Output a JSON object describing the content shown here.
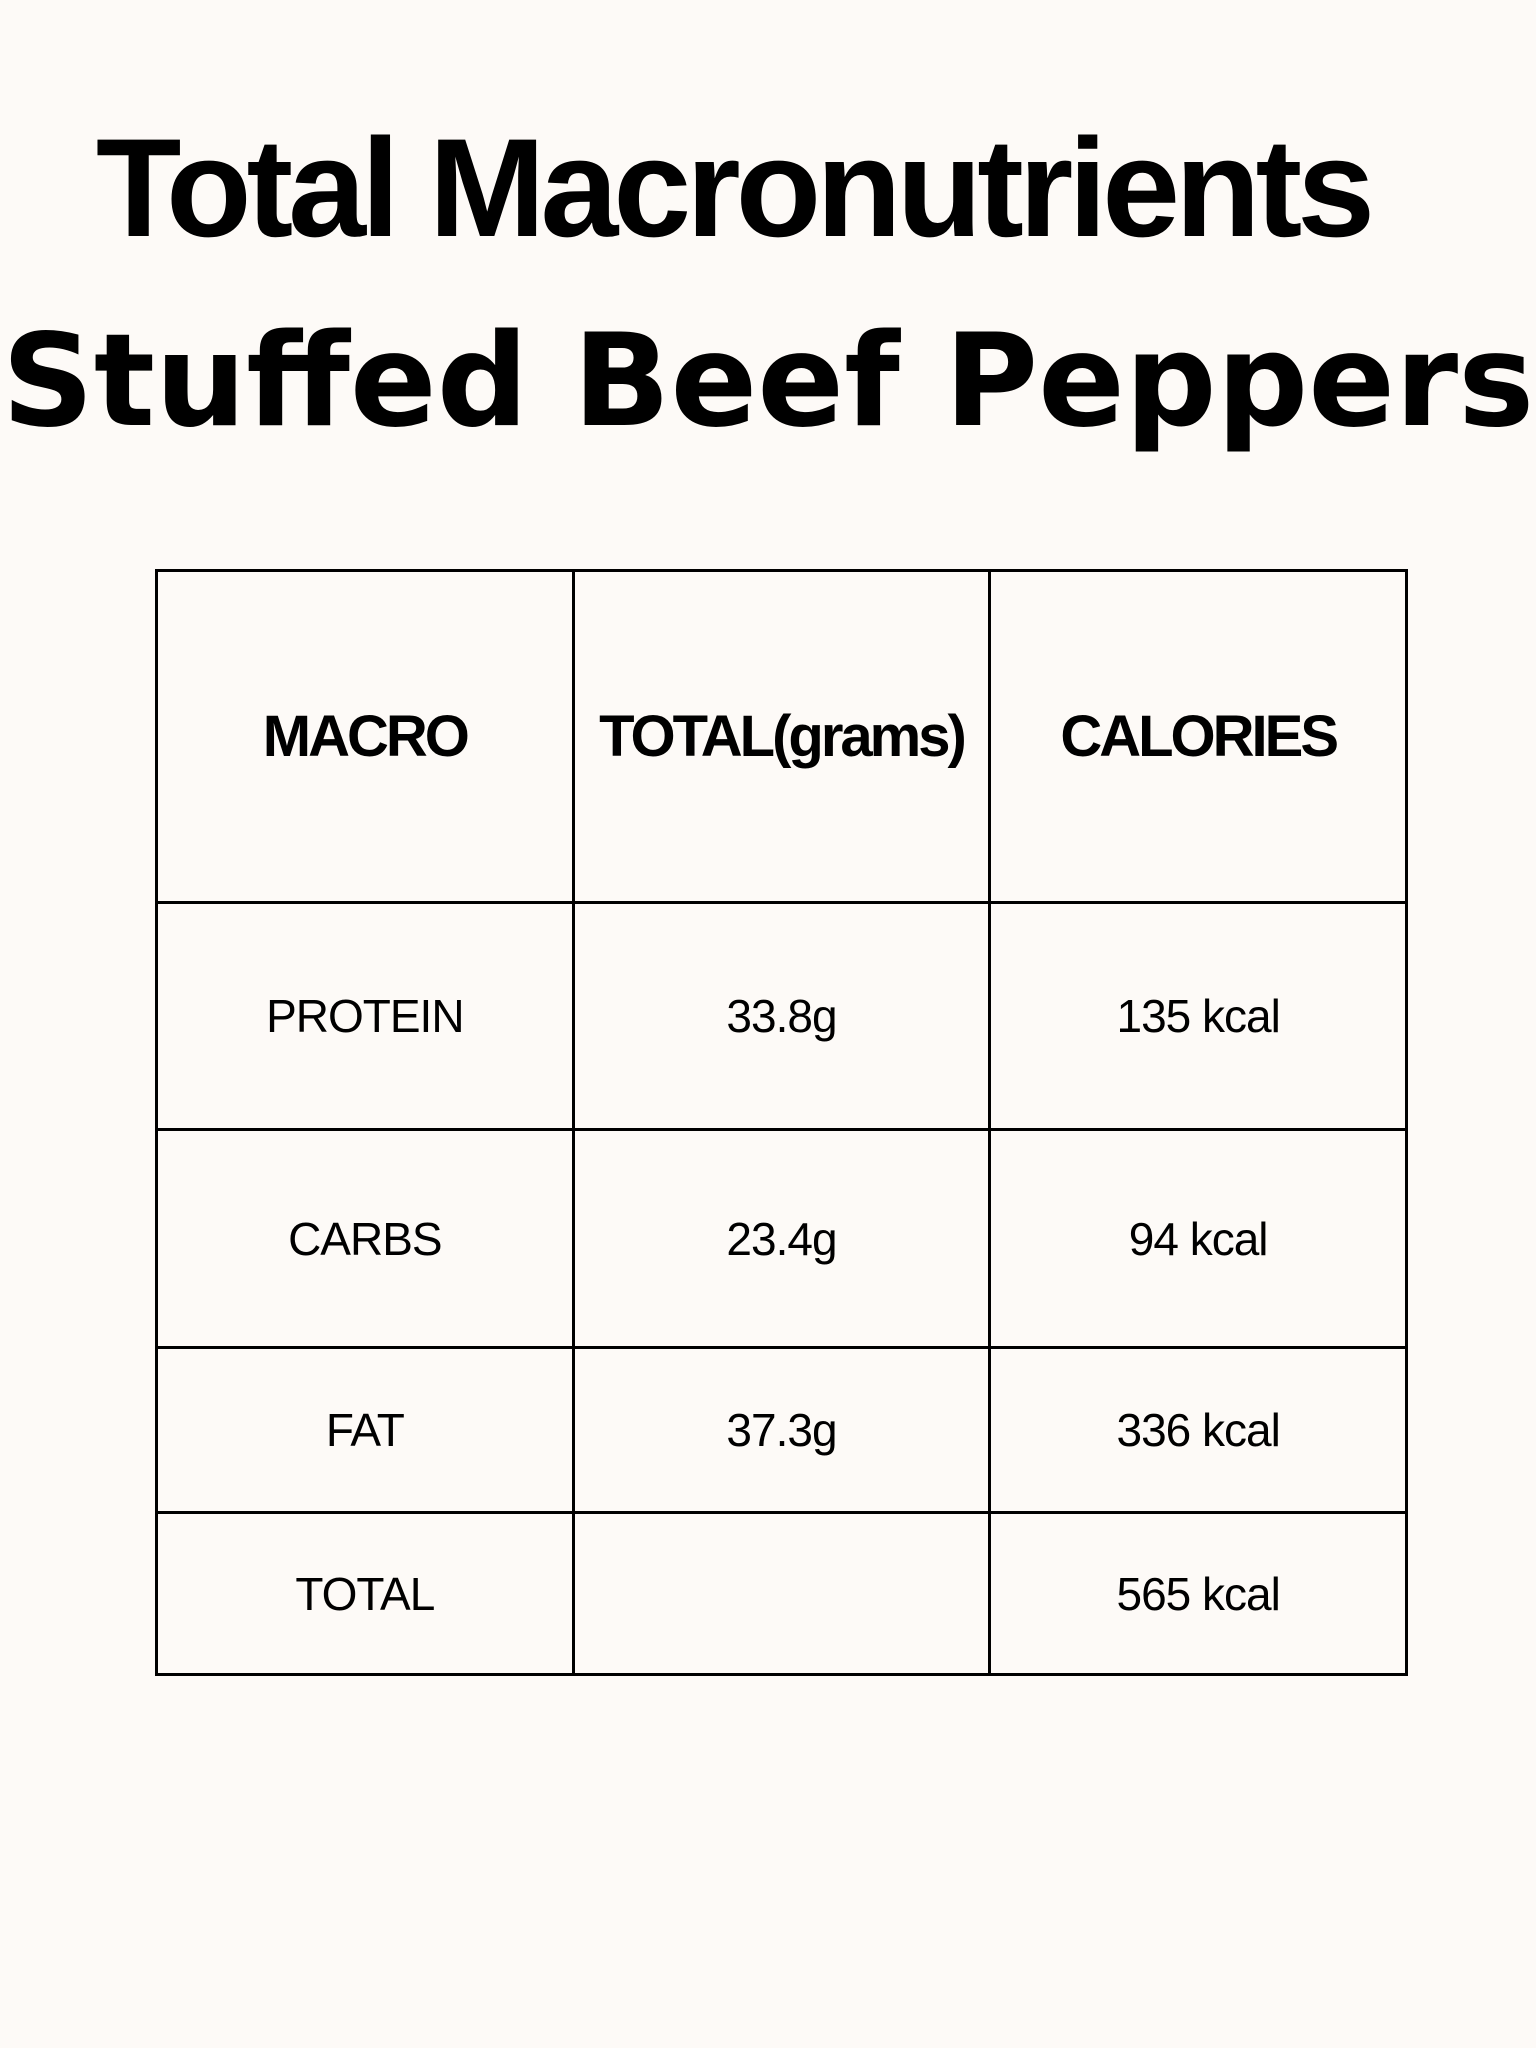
{
  "title": "Total Macronutrients",
  "subtitle": "Stuffed Beef Peppers",
  "table": {
    "headers": [
      "MACRO",
      "TOTAL(grams)",
      "CALORIES"
    ],
    "rows": [
      [
        "PROTEIN",
        "33.8g",
        "135 kcal"
      ],
      [
        "CARBS",
        "23.4g",
        "94 kcal"
      ],
      [
        "FAT",
        "37.3g",
        "336 kcal"
      ],
      [
        "TOTAL",
        "",
        "565 kcal"
      ]
    ]
  }
}
